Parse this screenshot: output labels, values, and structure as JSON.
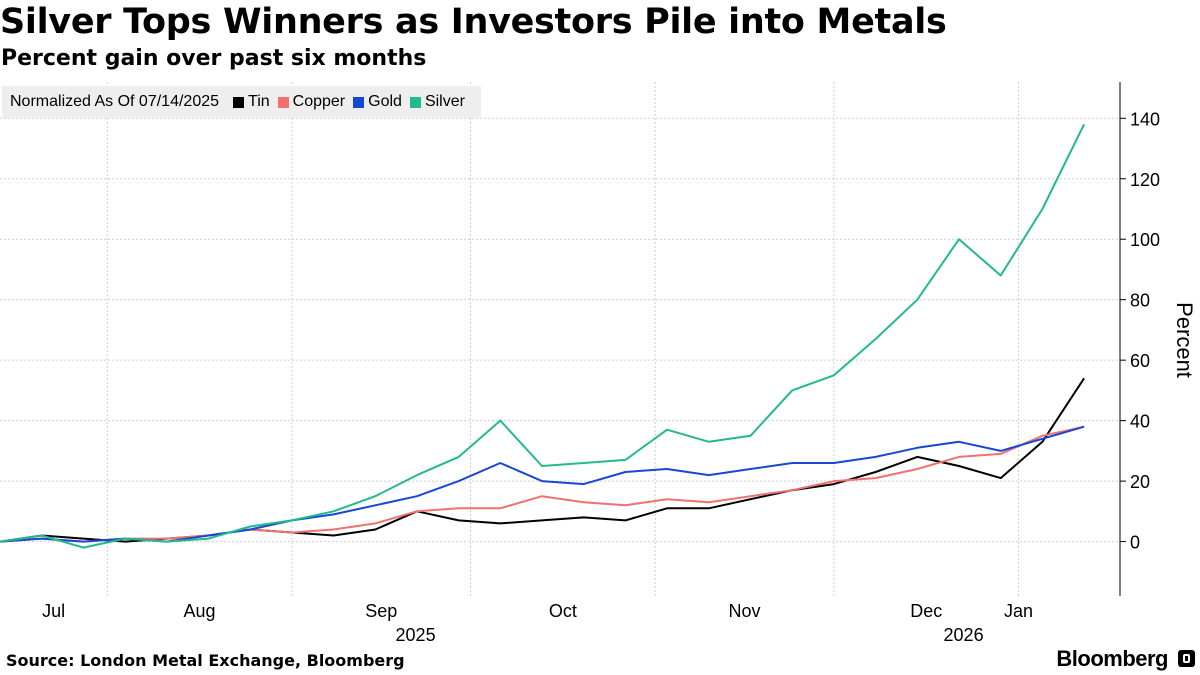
{
  "title": "Silver Tops Winners as Investors Pile into Metals",
  "subtitle": "Percent gain over past six months",
  "legend_note": "Normalized As Of 07/14/2025",
  "source": "Source: London Metal Exchange, Bloomberg",
  "brand": "Bloomberg",
  "chart_data": {
    "type": "line",
    "title": "Silver Tops Winners as Investors Pile into Metals",
    "subtitle": "Percent gain over past six months",
    "ylabel": "Percent",
    "ylim": [
      -18,
      152
    ],
    "yticks": [
      0,
      20,
      40,
      60,
      80,
      100,
      120,
      140
    ],
    "grid": true,
    "legend_position": "top-left",
    "xlim": [
      "2025-07-14",
      "2026-01-14"
    ],
    "month_ticks": [
      {
        "label": "Jul",
        "date": "2025-07-01"
      },
      {
        "label": "Aug",
        "date": "2025-08-01"
      },
      {
        "label": "Sep",
        "date": "2025-09-01"
      },
      {
        "label": "Oct",
        "date": "2025-10-01"
      },
      {
        "label": "Nov",
        "date": "2025-11-01"
      },
      {
        "label": "Dec",
        "date": "2025-12-01"
      },
      {
        "label": "Jan",
        "date": "2026-01-01"
      }
    ],
    "year_labels": [
      {
        "label": "2025",
        "date": "2025-10-01"
      },
      {
        "label": "2026",
        "date": "2026-01-01"
      }
    ],
    "x": [
      "2025-07-14",
      "2025-07-21",
      "2025-07-28",
      "2025-08-04",
      "2025-08-11",
      "2025-08-18",
      "2025-08-25",
      "2025-09-01",
      "2025-09-08",
      "2025-09-15",
      "2025-09-22",
      "2025-09-29",
      "2025-10-06",
      "2025-10-13",
      "2025-10-20",
      "2025-10-27",
      "2025-11-03",
      "2025-11-10",
      "2025-11-17",
      "2025-11-24",
      "2025-12-01",
      "2025-12-08",
      "2025-12-15",
      "2025-12-22",
      "2025-12-29",
      "2026-01-05",
      "2026-01-12"
    ],
    "series": [
      {
        "name": "Tin",
        "color": "#000000",
        "values": [
          0,
          2,
          1,
          0,
          1,
          2,
          4,
          3,
          2,
          4,
          10,
          7,
          6,
          7,
          8,
          7,
          11,
          11,
          14,
          17,
          19,
          23,
          28,
          25,
          21,
          33,
          54
        ]
      },
      {
        "name": "Copper",
        "color": "#f0716f",
        "values": [
          0,
          1,
          0,
          1,
          1,
          2,
          4,
          3,
          4,
          6,
          10,
          11,
          11,
          15,
          13,
          12,
          14,
          13,
          15,
          17,
          20,
          21,
          24,
          28,
          29,
          35,
          38
        ]
      },
      {
        "name": "Gold",
        "color": "#1747d4",
        "values": [
          0,
          1,
          0,
          1,
          0,
          2,
          4,
          7,
          9,
          12,
          15,
          20,
          26,
          20,
          19,
          23,
          24,
          22,
          24,
          26,
          26,
          28,
          31,
          33,
          30,
          34,
          38
        ]
      },
      {
        "name": "Silver",
        "color": "#22b98e",
        "values": [
          0,
          2,
          -2,
          1,
          0,
          1,
          5,
          7,
          10,
          15,
          22,
          28,
          40,
          25,
          26,
          27,
          37,
          33,
          35,
          50,
          55,
          67,
          80,
          100,
          88,
          110,
          138
        ]
      }
    ]
  }
}
